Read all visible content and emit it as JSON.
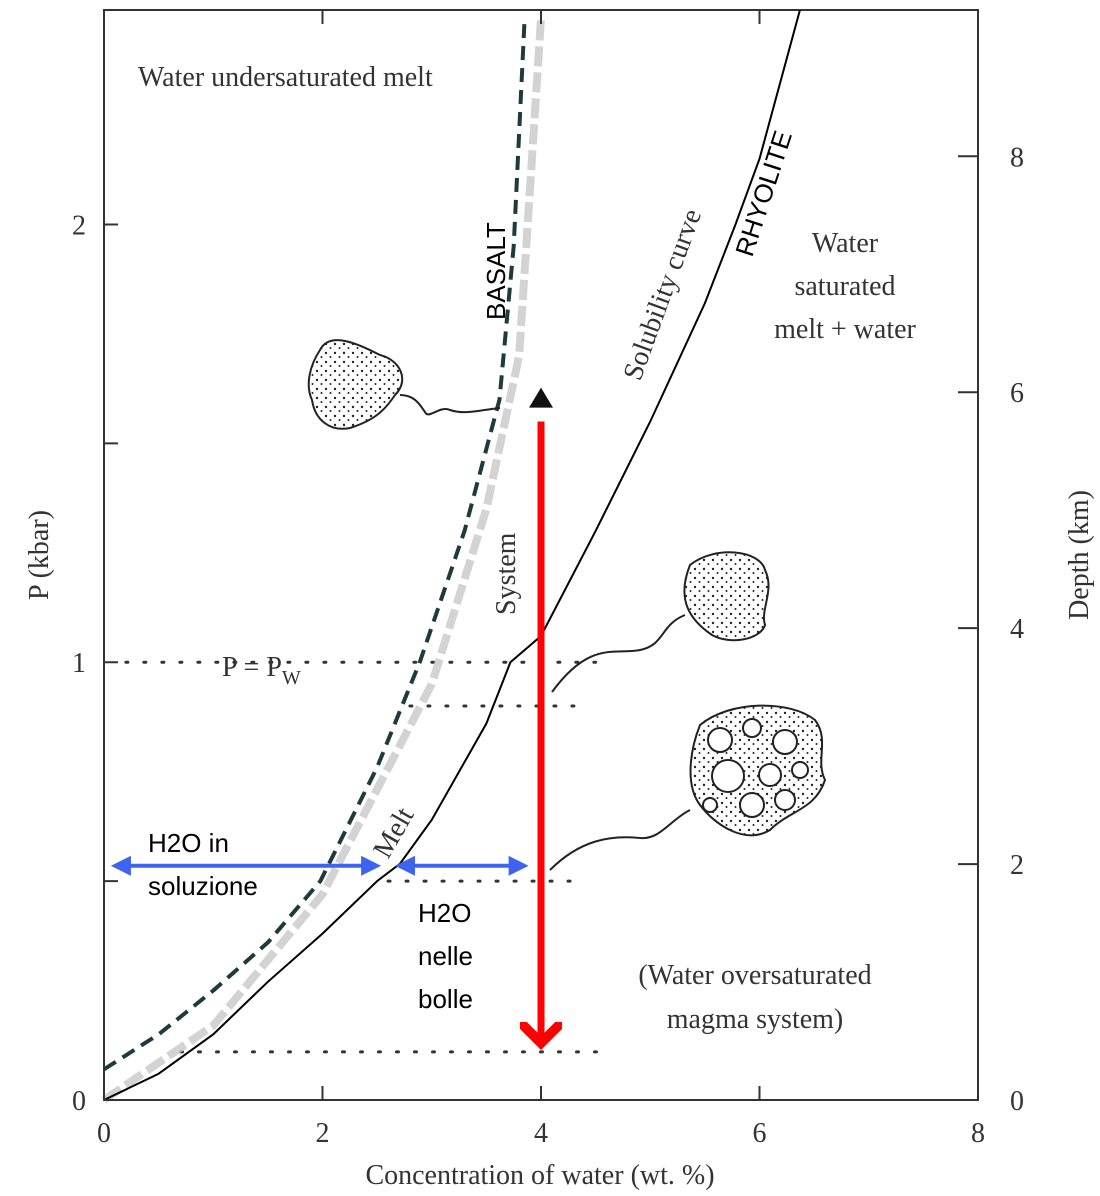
{
  "chart_data": {
    "type": "line",
    "x_label": "Concentration of water (wt. %)",
    "y_label": "P (kbar)",
    "y2_label": "Depth (km)",
    "xlim": [
      0,
      8
    ],
    "ylim": [
      0,
      2.49
    ],
    "y2lim": [
      0,
      9.24
    ],
    "xticks": [
      0,
      2,
      4,
      6,
      8
    ],
    "yticks": [
      0,
      1,
      2
    ],
    "yminorticks": [
      0.5,
      1.5
    ],
    "y2ticks": [
      0,
      2,
      4,
      6,
      8
    ],
    "series": [
      {
        "name": "RHYOLITE",
        "color": "#000000",
        "style": "solid",
        "x": [
          0,
          0.5,
          1,
          1.5,
          2,
          2.5,
          2.71,
          3,
          3.5,
          3.72,
          4,
          4.5,
          5,
          5.5,
          5.78,
          6,
          6.37
        ],
        "values": [
          0,
          0.06,
          0.15,
          0.27,
          0.38,
          0.5,
          0.54,
          0.64,
          0.86,
          1,
          1.06,
          1.3,
          1.55,
          1.82,
          2,
          2.15,
          2.49
        ]
      },
      {
        "name": "BASALT",
        "color": "#1f3a3d",
        "style": "dashed",
        "x": [
          0,
          0.5,
          1,
          1.5,
          1.98,
          2.5,
          2.89,
          3.3,
          3.62,
          3.75,
          3.85
        ],
        "values": [
          0.07,
          0.15,
          0.25,
          0.36,
          0.5,
          0.76,
          1,
          1.3,
          1.6,
          1.95,
          2.47
        ]
      },
      {
        "name": "System",
        "color": "#c8c8c8",
        "style": "shaded",
        "x": [
          0,
          1,
          2,
          3,
          3.5,
          3.8,
          4
        ],
        "values": [
          0,
          0.17,
          0.47,
          0.95,
          1.35,
          1.7,
          2.47
        ]
      }
    ],
    "dotted_lines": [
      {
        "x": [
          0.2,
          4.5
        ],
        "value": 1
      },
      {
        "x": [
          2.8,
          4.4
        ],
        "value": 0.9
      },
      {
        "x": [
          2.6,
          4.4
        ],
        "value": 0.5
      },
      {
        "x": [
          0.7,
          4.6
        ],
        "value": 0.11
      }
    ],
    "arrows": [
      {
        "color": "#ff0000",
        "x": [
          4,
          4
        ],
        "values": [
          1.55,
          0.13
        ]
      },
      {
        "color": "#3d63f0",
        "x": [
          0.1,
          2.5
        ],
        "values": [
          0.535,
          0.535
        ]
      },
      {
        "color": "#3d63f0",
        "x": [
          2.7,
          3.85
        ],
        "values": [
          0.535,
          0.535
        ]
      }
    ],
    "marker": {
      "x": 4,
      "value": 1.6
    },
    "p_equals": {
      "text": "P = P",
      "subscript": "W"
    },
    "annotations": [
      "Water undersaturated melt",
      "Water",
      "saturated",
      "melt + water",
      "Solubility curve",
      "Melt",
      "(Water oversaturated",
      "magma system)",
      "H2O in",
      "soluzione",
      "H2O",
      "nelle",
      "bolle"
    ]
  }
}
